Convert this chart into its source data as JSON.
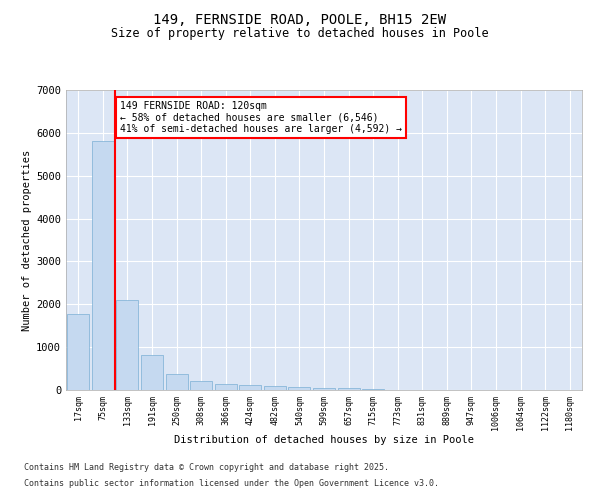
{
  "title1": "149, FERNSIDE ROAD, POOLE, BH15 2EW",
  "title2": "Size of property relative to detached houses in Poole",
  "xlabel": "Distribution of detached houses by size in Poole",
  "ylabel": "Number of detached properties",
  "categories": [
    "17sqm",
    "75sqm",
    "133sqm",
    "191sqm",
    "250sqm",
    "308sqm",
    "366sqm",
    "424sqm",
    "482sqm",
    "540sqm",
    "599sqm",
    "657sqm",
    "715sqm",
    "773sqm",
    "831sqm",
    "889sqm",
    "947sqm",
    "1006sqm",
    "1064sqm",
    "1122sqm",
    "1180sqm"
  ],
  "values": [
    1780,
    5820,
    2090,
    820,
    370,
    210,
    130,
    110,
    95,
    75,
    55,
    40,
    20,
    10,
    8,
    5,
    4,
    3,
    2,
    2,
    1
  ],
  "bar_color": "#c5d9f0",
  "bar_edge_color": "#7aafd4",
  "vline_color": "red",
  "annotation_text": "149 FERNSIDE ROAD: 120sqm\n← 58% of detached houses are smaller (6,546)\n41% of semi-detached houses are larger (4,592) →",
  "annotation_box_color": "white",
  "annotation_box_edge": "red",
  "ylim": [
    0,
    7000
  ],
  "yticks": [
    0,
    1000,
    2000,
    3000,
    4000,
    5000,
    6000,
    7000
  ],
  "bg_color": "#dce6f5",
  "fig_bg_color": "#ffffff",
  "footer1": "Contains HM Land Registry data © Crown copyright and database right 2025.",
  "footer2": "Contains public sector information licensed under the Open Government Licence v3.0."
}
